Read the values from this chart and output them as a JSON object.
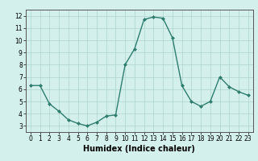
{
  "x": [
    0,
    1,
    2,
    3,
    4,
    5,
    6,
    7,
    8,
    9,
    10,
    11,
    12,
    13,
    14,
    15,
    16,
    17,
    18,
    19,
    20,
    21,
    22,
    23
  ],
  "y": [
    6.3,
    6.3,
    4.8,
    4.2,
    3.5,
    3.2,
    3.0,
    3.3,
    3.8,
    3.9,
    8.0,
    9.3,
    11.7,
    11.9,
    11.8,
    10.2,
    6.3,
    5.0,
    4.6,
    5.0,
    7.0,
    6.2,
    5.8,
    5.5
  ],
  "line_color": "#2e7d6e",
  "marker": "D",
  "marker_size": 2.0,
  "linewidth": 1.0,
  "xlabel": "Humidex (Indice chaleur)",
  "xlabel_fontsize": 7,
  "xlim": [
    -0.5,
    23.5
  ],
  "ylim": [
    2.5,
    12.5
  ],
  "yticks": [
    3,
    4,
    5,
    6,
    7,
    8,
    9,
    10,
    11,
    12
  ],
  "xticks": [
    0,
    1,
    2,
    3,
    4,
    5,
    6,
    7,
    8,
    9,
    10,
    11,
    12,
    13,
    14,
    15,
    16,
    17,
    18,
    19,
    20,
    21,
    22,
    23
  ],
  "tick_labelsize": 5.5,
  "bg_color": "#d4f0ec",
  "grid_color": "#aed4ce",
  "grid_linewidth": 0.5,
  "spine_color": "#555555",
  "spine_linewidth": 0.7
}
